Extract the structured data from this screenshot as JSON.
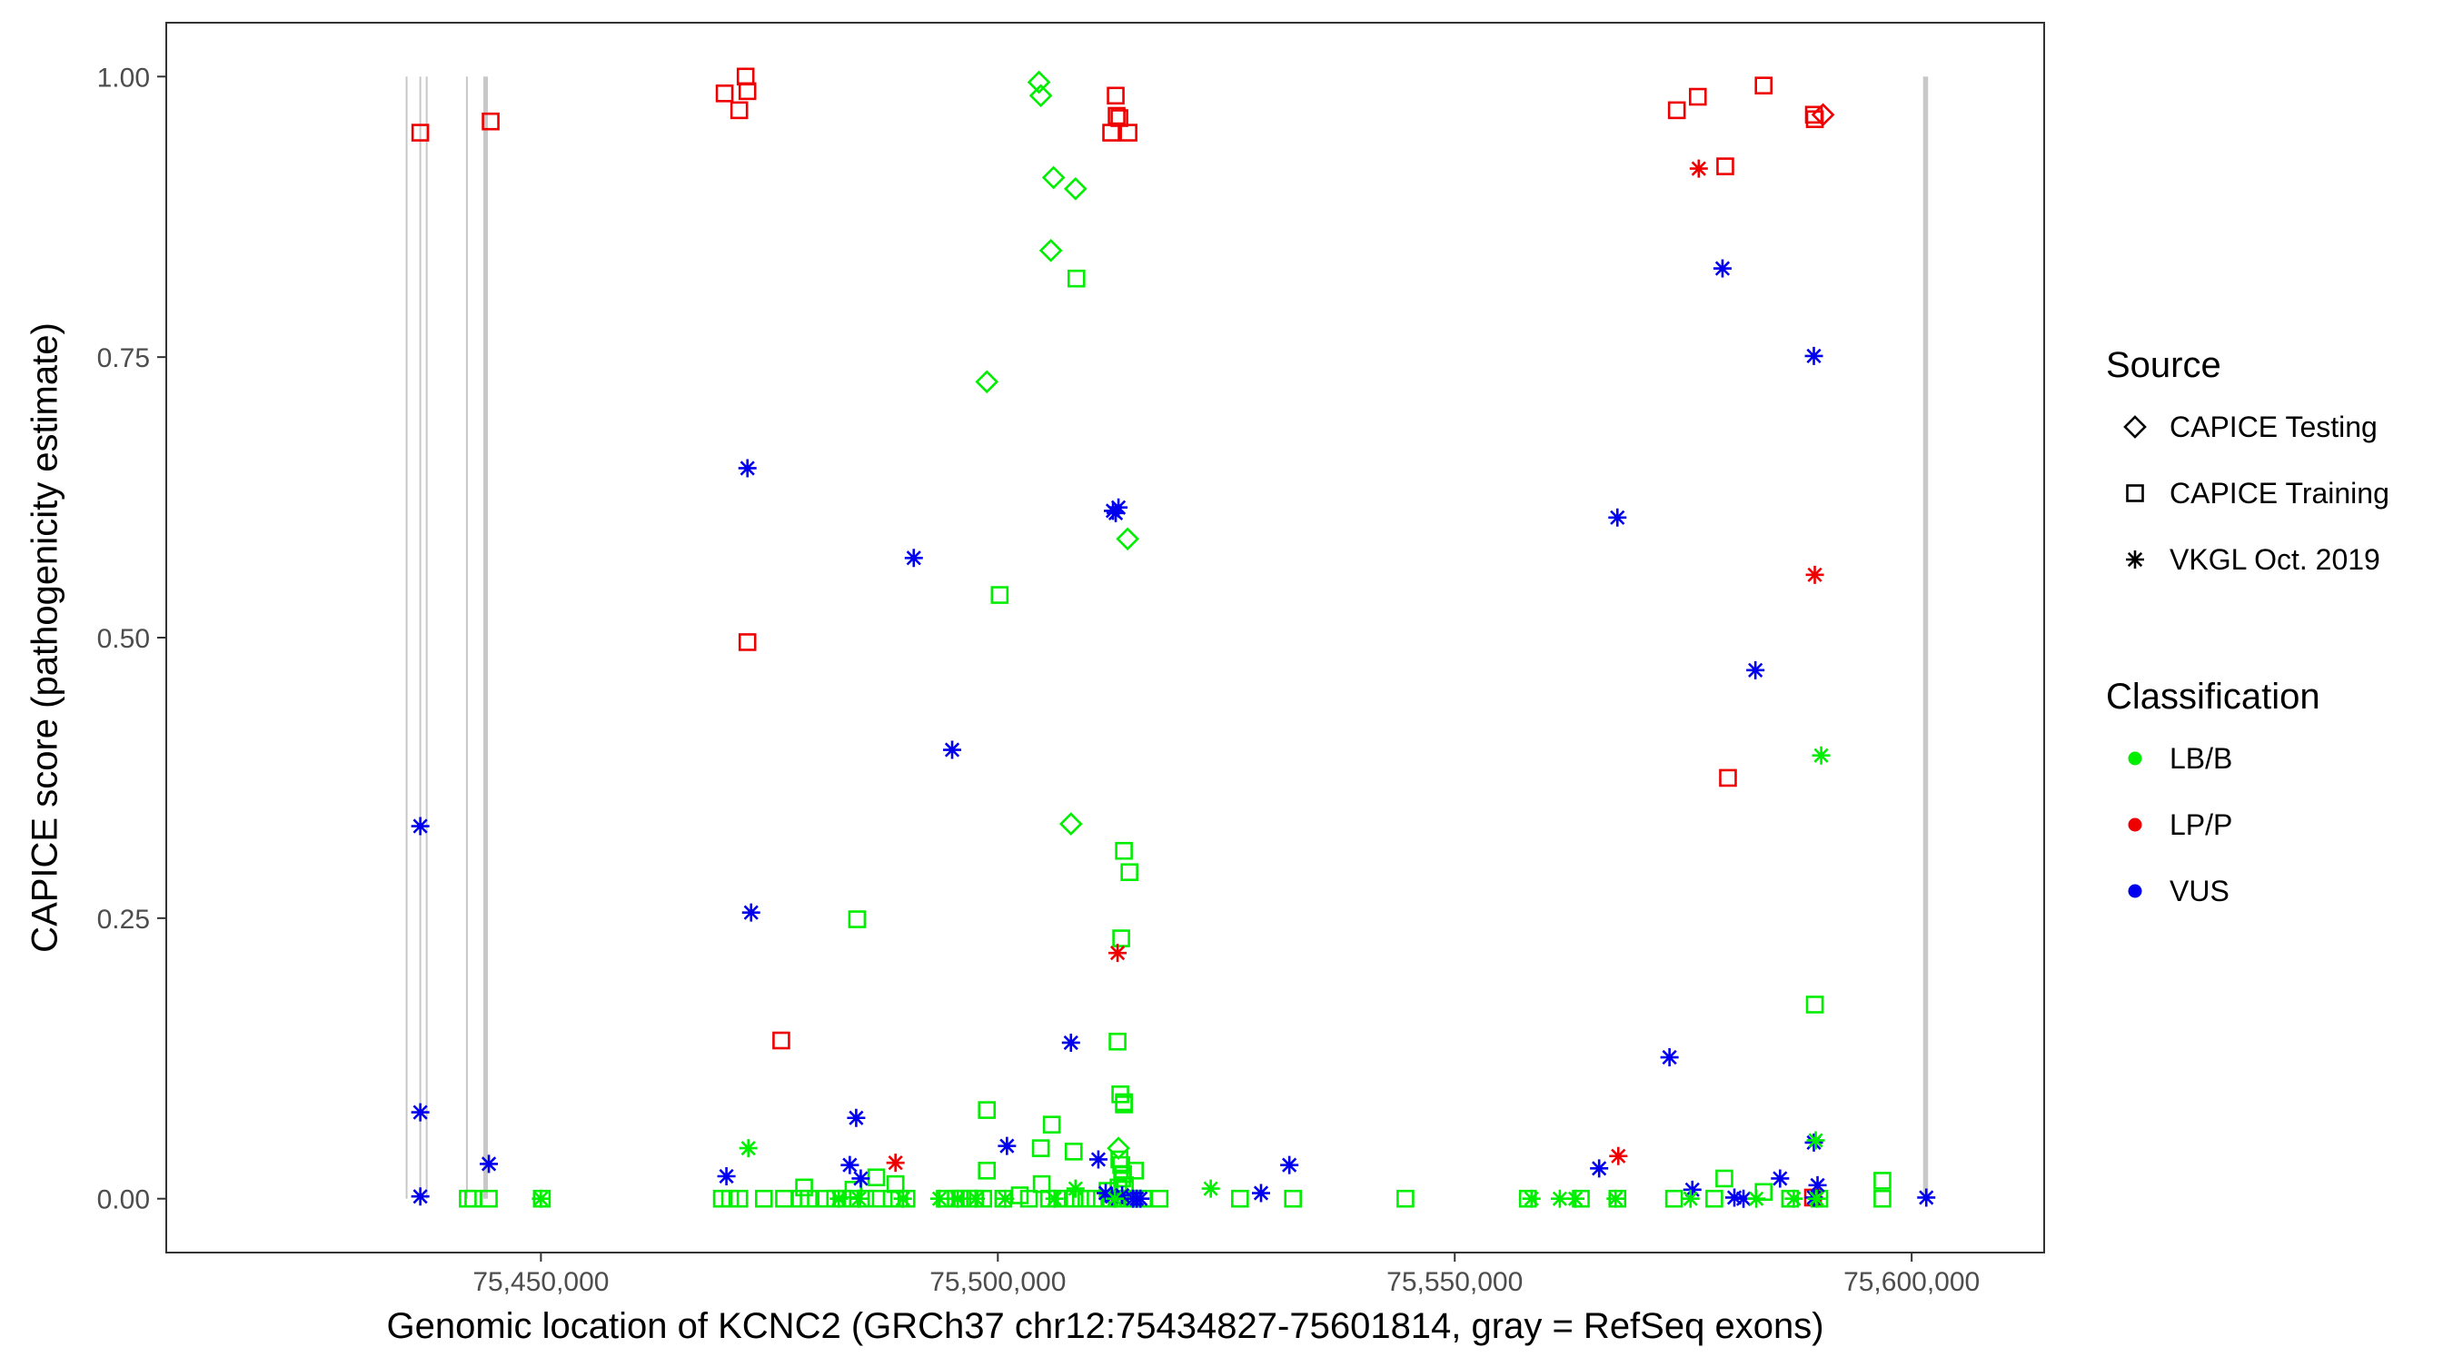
{
  "chart_data": {
    "type": "scatter",
    "xlabel": "Genomic location of KCNC2 (GRCh37 chr12:75434827-75601814, gray = RefSeq exons)",
    "ylabel": "CAPICE score (pathogenicity estimate)",
    "xlim": [
      75409000,
      75614500
    ],
    "ylim": [
      -0.048,
      1.048
    ],
    "x_ticks": [
      75450000,
      75500000,
      75550000,
      75600000
    ],
    "x_tick_labels": [
      "75,450,000",
      "75,500,000",
      "75,550,000",
      "75,600,000"
    ],
    "y_ticks": [
      0,
      0.25,
      0.5,
      0.75,
      1.0
    ],
    "y_tick_labels": [
      "0.00",
      "0.25",
      "0.50",
      "0.75",
      "1.00"
    ],
    "grid": false,
    "legend_position": "right",
    "colors": {
      "LB/B": "#00ee00",
      "LP/P": "#ee0000",
      "VUS": "#0000ee",
      "exon": "#c8c8c8"
    },
    "exons": [
      [
        75435200,
        75435320
      ],
      [
        75436700,
        75436800
      ],
      [
        75437400,
        75437500
      ],
      [
        75441800,
        75441900
      ],
      [
        75443700,
        75444200
      ],
      [
        75601250,
        75601800
      ]
    ],
    "legends": [
      {
        "title": "Source",
        "items": [
          {
            "label": "CAPICE Testing",
            "shape": "diamond"
          },
          {
            "label": "CAPICE Training",
            "shape": "square"
          },
          {
            "label": "VKGL Oct. 2019",
            "shape": "asterisk"
          }
        ]
      },
      {
        "title": "Classification",
        "items": [
          {
            "label": "LB/B",
            "shape": "dot",
            "color": "#00ee00"
          },
          {
            "label": "LP/P",
            "shape": "dot",
            "color": "#ee0000"
          },
          {
            "label": "VUS",
            "shape": "dot",
            "color": "#0000ee"
          }
        ]
      }
    ],
    "series": [
      {
        "name": "CAPICE Testing",
        "classification": "LB/B",
        "shape": "diamond",
        "x": [
          75504500,
          75504700,
          75506100,
          75508500,
          75505800,
          75498800,
          75508000,
          75514200,
          75513200
        ],
        "y": [
          0.995,
          0.983,
          0.91,
          0.9,
          0.845,
          0.728,
          0.334,
          0.588,
          0.045
        ]
      },
      {
        "name": "CAPICE Testing",
        "classification": "LP/P",
        "shape": "diamond",
        "x": [
          75590300
        ],
        "y": [
          0.966
        ]
      },
      {
        "name": "CAPICE Training",
        "classification": "LP/P",
        "shape": "square",
        "x": [
          75436800,
          75444500,
          75470100,
          75471700,
          75472400,
          75472600,
          75472600,
          75512900,
          75513000,
          75513300,
          75512400,
          75514300,
          75476300,
          75574300,
          75576600,
          75579600,
          75583800,
          75589300,
          75589400,
          75589200,
          75579900
        ],
        "y": [
          0.95,
          0.96,
          0.985,
          0.97,
          1.0,
          0.987,
          0.496,
          0.983,
          0.965,
          0.963,
          0.95,
          0.95,
          0.141,
          0.97,
          0.982,
          0.92,
          0.992,
          0.966,
          0.962,
          0.001,
          0.375
        ]
      },
      {
        "name": "CAPICE Training",
        "classification": "LB/B",
        "shape": "square",
        "x": [
          75508600,
          75500200,
          75513800,
          75514400,
          75484600,
          75513500,
          75589400,
          75513100,
          75513400,
          75513800,
          75513800,
          75498800,
          75505900,
          75508300,
          75504700,
          75498800,
          75515000,
          75513300,
          75513500,
          75513700,
          75513600,
          75513900,
          75513200,
          75486700,
          75488800,
          75478800,
          75484200,
          75579500,
          75596800,
          75502400,
          75504800,
          75512000,
          75583800,
          75442000,
          75442600,
          75444300,
          75450100,
          75469800,
          75470700,
          75471700,
          75474400,
          75476600,
          75478400,
          75479300,
          75481200,
          75482200,
          75483000,
          75484100,
          75485500,
          75486700,
          75488400,
          75489200,
          75490000,
          75494200,
          75495400,
          75496100,
          75496900,
          75497500,
          75498400,
          75500600,
          75503400,
          75505600,
          75506500,
          75507400,
          75508400,
          75509700,
          75510700,
          75512200,
          75513000,
          75513400,
          75514300,
          75514800,
          75515900,
          75517700,
          75526500,
          75532300,
          75544600,
          75558000,
          75563800,
          75567800,
          75574000,
          75578400,
          75586700,
          75589900,
          75596800
        ],
        "y": [
          0.82,
          0.538,
          0.31,
          0.291,
          0.249,
          0.232,
          0.173,
          0.14,
          0.093,
          0.086,
          0.084,
          0.079,
          0.066,
          0.042,
          0.045,
          0.025,
          0.025,
          0.035,
          0.03,
          0.022,
          0.018,
          0.012,
          0.01,
          0.019,
          0.013,
          0.01,
          0.008,
          0.018,
          0.016,
          0.003,
          0.013,
          0.007,
          0.006,
          0,
          0,
          0,
          0,
          0,
          0,
          0,
          0,
          0,
          0,
          0,
          0,
          0,
          0,
          0,
          0,
          0,
          0,
          0,
          0,
          0,
          0,
          0,
          0,
          0,
          0,
          0,
          0,
          0,
          0,
          0,
          0,
          0,
          0,
          0,
          0,
          0,
          0,
          0,
          0,
          0,
          0,
          0,
          0,
          0,
          0,
          0,
          0,
          0,
          0,
          0,
          0
        ]
      },
      {
        "name": "VKGL Oct. 2019",
        "classification": "VUS",
        "shape": "asterisk",
        "x": [
          75579300,
          75589300,
          75472600,
          75512600,
          75513200,
          75512900,
          75567800,
          75490800,
          75582900,
          75495000,
          75436800,
          75473000,
          75508000,
          75573500,
          75436800,
          75484500,
          75501000,
          75511000,
          75531900,
          75444300,
          75483800,
          75470300,
          75565800,
          75485000,
          75585600,
          75589300,
          75589700,
          75576000,
          75589300,
          75436800,
          75528800,
          75511800,
          75512500,
          75513600,
          75514800,
          75515200,
          75515600,
          75580600,
          75581600,
          75601600
        ],
        "y": [
          0.829,
          0.751,
          0.651,
          0.613,
          0.616,
          0.611,
          0.607,
          0.571,
          0.471,
          0.4,
          0.332,
          0.255,
          0.139,
          0.126,
          0.077,
          0.072,
          0.047,
          0.035,
          0.03,
          0.031,
          0.03,
          0.02,
          0.027,
          0.018,
          0.018,
          0.05,
          0.012,
          0.008,
          0.001,
          0.002,
          0.005,
          0.005,
          0.002,
          0.003,
          0,
          0,
          0,
          0.001,
          0,
          0.001
        ]
      },
      {
        "name": "VKGL Oct. 2019",
        "classification": "LP/P",
        "shape": "asterisk",
        "x": [
          75576700,
          75589400,
          75513100,
          75488800,
          75567900
        ],
        "y": [
          0.918,
          0.556,
          0.219,
          0.032,
          0.038
        ]
      },
      {
        "name": "VKGL Oct. 2019",
        "classification": "LB/B",
        "shape": "asterisk",
        "x": [
          75590100,
          75472700,
          75589500,
          75523300,
          75508500,
          75450000,
          75482600,
          75484800,
          75489600,
          75493600,
          75495600,
          75497600,
          75500800,
          75506200,
          75512800,
          75558400,
          75561500,
          75563200,
          75567600,
          75575800,
          75583000,
          75587100,
          75589600
        ],
        "y": [
          0.395,
          0.045,
          0.052,
          0.009,
          0.009,
          0,
          0,
          0,
          0,
          0,
          0,
          0,
          0,
          0,
          0,
          0,
          0,
          0,
          0,
          0,
          0,
          0,
          0
        ]
      }
    ]
  }
}
